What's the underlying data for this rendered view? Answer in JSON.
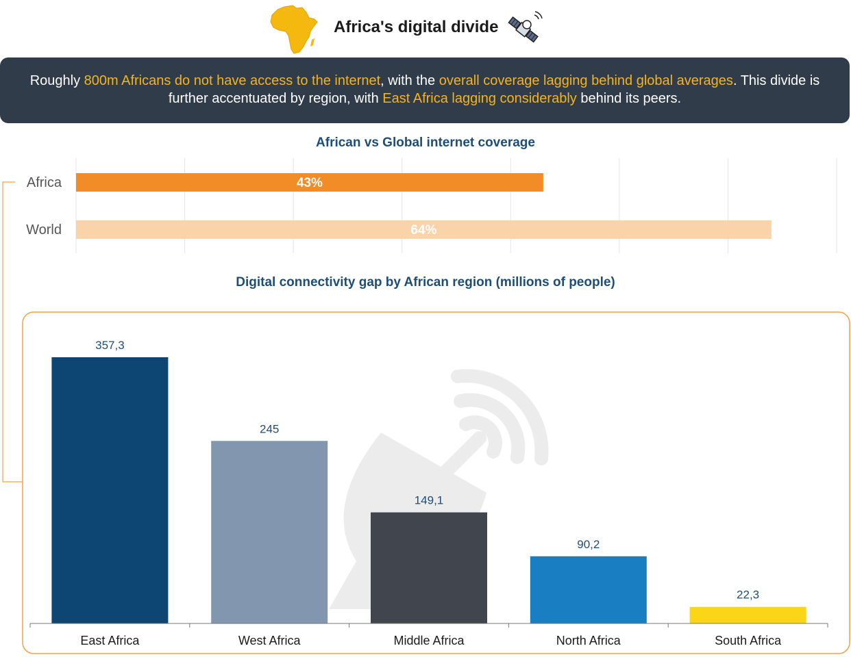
{
  "title": "Africa's digital divide",
  "banner": {
    "p1": "Roughly ",
    "h1": "800m Africans  do not have access to the internet",
    "p2": ", with the ",
    "h2": "overall coverage lagging behind global averages",
    "p3": ". This divide is further accentuated by region, with ",
    "h3": "East Africa lagging considerably",
    "p4": " behind its peers."
  },
  "icons": {
    "title_left": "africa-map-icon",
    "title_right": "satellite-icon"
  },
  "colors": {
    "banner_bg": "#313c4a",
    "highlight": "#f4b41a",
    "title_blue": "#1e4d76",
    "frame_orange": "#f2a24a"
  },
  "chart_data": [
    {
      "type": "bar",
      "orientation": "horizontal",
      "title": "African vs Global internet coverage",
      "categories": [
        "Africa",
        "World"
      ],
      "values": [
        43,
        64
      ],
      "labels": [
        "43%",
        "64%"
      ],
      "colors": [
        "#f28c26",
        "#fbd3a8"
      ],
      "xlim": [
        0,
        70
      ],
      "grid": true
    },
    {
      "type": "bar",
      "title": "Digital connectivity gap by African region (millions of people)",
      "categories": [
        "East Africa",
        "West Africa",
        "Middle Africa",
        "North Africa",
        "South Africa"
      ],
      "values": [
        357.3,
        245,
        149.1,
        90.2,
        22.3
      ],
      "labels": [
        "357,3",
        "245",
        "149,1",
        "90,2",
        "22,3"
      ],
      "colors": [
        "#0d4673",
        "#8297af",
        "#41454d",
        "#1a7fc2",
        "#fbd616"
      ],
      "ylim": [
        0,
        357.3
      ]
    }
  ]
}
